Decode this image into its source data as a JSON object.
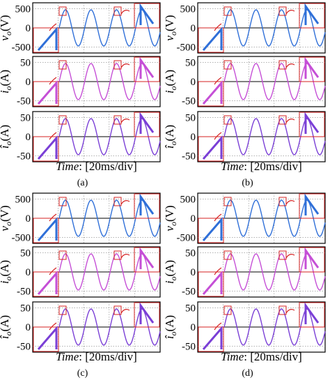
{
  "figure": {
    "colors": {
      "vo": "#2f6fd8",
      "io": "#c54fd6",
      "io_est": "#7a3fd6",
      "inset_frame": "#d42020",
      "plot_frame": "#000000",
      "grid": "#808080"
    },
    "time_label": {
      "italic": "Time",
      "rest": ": [20ms/div]"
    }
  },
  "chart_data": [
    {
      "id": "a",
      "caption": "(a)",
      "type": "line",
      "rows": [
        {
          "ylabel": "v_o(V)",
          "yticks": [
            "500",
            "0",
            "-500"
          ],
          "ylim": [
            -650,
            650
          ],
          "color": "vo"
        },
        {
          "ylabel": "i_o(A)",
          "yticks": [
            "50",
            "0",
            "-50"
          ],
          "ylim": [
            -65,
            65
          ],
          "color": "io"
        },
        {
          "ylabel": "î_o(A)",
          "yticks": [
            "50",
            "0",
            "-50"
          ],
          "ylim": [
            -65,
            65
          ],
          "color": "io_est"
        }
      ]
    },
    {
      "id": "b",
      "caption": "(b)",
      "type": "line",
      "rows": [
        {
          "ylabel": "v_o(V)",
          "yticks": [
            "500",
            "0",
            "-500"
          ],
          "ylim": [
            -650,
            650
          ],
          "color": "vo"
        },
        {
          "ylabel": "i_o(A)",
          "yticks": [
            "50",
            "0",
            "-50"
          ],
          "ylim": [
            -65,
            65
          ],
          "color": "io"
        },
        {
          "ylabel": "î_o(A)",
          "yticks": [
            "50",
            "0",
            "-50"
          ],
          "ylim": [
            -65,
            65
          ],
          "color": "io_est"
        }
      ]
    },
    {
      "id": "c",
      "caption": "(c)",
      "type": "line",
      "rows": [
        {
          "ylabel": "v_o(V)",
          "yticks": [
            "500",
            "0",
            "-500"
          ],
          "ylim": [
            -650,
            650
          ],
          "color": "vo"
        },
        {
          "ylabel": "i_o(A)",
          "yticks": [
            "50",
            "0",
            "-50"
          ],
          "ylim": [
            -65,
            65
          ],
          "color": "io"
        },
        {
          "ylabel": "î_o(A)",
          "yticks": [
            "50",
            "0",
            "-50"
          ],
          "ylim": [
            -65,
            65
          ],
          "color": "io_est"
        }
      ]
    },
    {
      "id": "d",
      "caption": "(d)",
      "type": "line",
      "rows": [
        {
          "ylabel": "v_o(V)",
          "yticks": [
            "500",
            "0",
            "-500"
          ],
          "ylim": [
            -650,
            650
          ],
          "color": "vo"
        },
        {
          "ylabel": "i_o(A)",
          "yticks": [
            "50",
            "0",
            "-50"
          ],
          "ylim": [
            -65,
            65
          ],
          "color": "io"
        },
        {
          "ylabel": "î_o(A)",
          "yticks": [
            "50",
            "0",
            "-50"
          ],
          "ylim": [
            -65,
            65
          ],
          "color": "io_est"
        }
      ]
    }
  ]
}
